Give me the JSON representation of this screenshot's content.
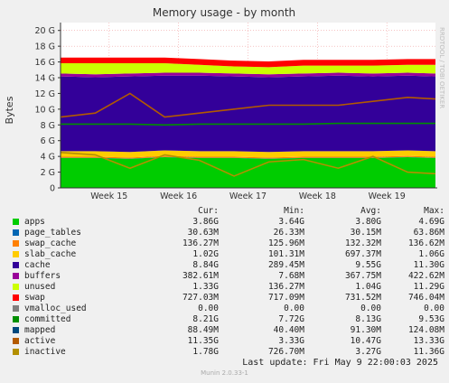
{
  "chart_data": {
    "type": "area",
    "title": "Memory usage - by month",
    "ylabel": "Bytes",
    "ylim": [
      0,
      21
    ],
    "y_ticks": [
      "0",
      "2 G",
      "4 G",
      "6 G",
      "8 G",
      "10 G",
      "12 G",
      "14 G",
      "16 G",
      "18 G",
      "20 G"
    ],
    "y_tick_values": [
      0,
      2,
      4,
      6,
      8,
      10,
      12,
      14,
      16,
      18,
      20
    ],
    "x_ticks": [
      "Week 15",
      "Week 16",
      "Week 17",
      "Week 18",
      "Week 19"
    ],
    "x_tick_values": [
      15,
      16,
      17,
      18,
      19
    ],
    "xlim": [
      14.3,
      19.7
    ],
    "side_label": "RRDTOOL / TOBI OETIKER",
    "grid": true,
    "stacked_series": [
      {
        "name": "apps",
        "color": "#00cc00",
        "values": [
          3.8,
          3.8,
          3.7,
          3.9,
          3.8,
          3.8,
          3.7,
          3.8,
          3.8,
          3.8,
          3.9,
          3.8
        ]
      },
      {
        "name": "page_tables",
        "color": "#0066b3",
        "values": [
          0.03,
          0.03,
          0.03,
          0.03,
          0.03,
          0.03,
          0.03,
          0.03,
          0.03,
          0.03,
          0.03,
          0.03
        ]
      },
      {
        "name": "swap_cache",
        "color": "#ff8000",
        "values": [
          0.13,
          0.13,
          0.13,
          0.13,
          0.13,
          0.13,
          0.13,
          0.13,
          0.13,
          0.13,
          0.13,
          0.13
        ]
      },
      {
        "name": "slab_cache",
        "color": "#ffcc00",
        "values": [
          0.7,
          0.7,
          0.7,
          0.7,
          0.7,
          0.7,
          0.7,
          0.7,
          0.7,
          0.7,
          0.7,
          0.7
        ]
      },
      {
        "name": "cache",
        "color": "#330099",
        "values": [
          9.5,
          9.4,
          9.6,
          9.5,
          9.6,
          9.5,
          9.5,
          9.5,
          9.6,
          9.5,
          9.5,
          9.5
        ]
      },
      {
        "name": "buffers",
        "color": "#990099",
        "values": [
          0.37,
          0.37,
          0.37,
          0.37,
          0.37,
          0.37,
          0.37,
          0.37,
          0.37,
          0.37,
          0.37,
          0.37
        ]
      },
      {
        "name": "unused",
        "color": "#ccff00",
        "values": [
          1.3,
          1.4,
          1.3,
          1.2,
          1.0,
          0.9,
          0.9,
          1.0,
          0.9,
          1.0,
          1.0,
          1.1
        ]
      },
      {
        "name": "swap",
        "color": "#ff0000",
        "values": [
          0.73,
          0.73,
          0.73,
          0.73,
          0.73,
          0.73,
          0.73,
          0.73,
          0.73,
          0.73,
          0.73,
          0.73
        ]
      }
    ],
    "line_series": [
      {
        "name": "committed",
        "color": "#008f00",
        "values": [
          8.1,
          8.1,
          8.1,
          8.0,
          8.1,
          8.1,
          8.1,
          8.1,
          8.2,
          8.2,
          8.2,
          8.2
        ]
      },
      {
        "name": "active",
        "color": "#b35a00",
        "values": [
          9.0,
          9.5,
          12.0,
          9.0,
          9.5,
          10.0,
          10.5,
          10.5,
          10.5,
          11.0,
          11.5,
          11.3
        ]
      },
      {
        "name": "inactive",
        "color": "#b38f00",
        "values": [
          4.5,
          4.2,
          2.5,
          4.2,
          3.5,
          1.5,
          3.3,
          3.6,
          2.5,
          4.0,
          2.0,
          1.8
        ]
      }
    ],
    "x_samples": [
      14.3,
      14.8,
      15.3,
      15.8,
      16.3,
      16.8,
      17.3,
      17.8,
      18.3,
      18.8,
      19.3,
      19.7
    ]
  },
  "legend": {
    "headers": {
      "cur": "Cur:",
      "min": "Min:",
      "avg": "Avg:",
      "max": "Max:"
    },
    "rows": [
      {
        "name": "apps",
        "color": "#00cc00",
        "cur": "3.86G",
        "min": "3.64G",
        "avg": "3.80G",
        "max": "4.69G"
      },
      {
        "name": "page_tables",
        "color": "#0066b3",
        "cur": "30.63M",
        "min": "26.33M",
        "avg": "30.15M",
        "max": "63.86M"
      },
      {
        "name": "swap_cache",
        "color": "#ff8000",
        "cur": "136.27M",
        "min": "125.96M",
        "avg": "132.32M",
        "max": "136.62M"
      },
      {
        "name": "slab_cache",
        "color": "#ffcc00",
        "cur": "1.02G",
        "min": "101.31M",
        "avg": "697.37M",
        "max": "1.06G"
      },
      {
        "name": "cache",
        "color": "#330099",
        "cur": "8.84G",
        "min": "289.45M",
        "avg": "9.55G",
        "max": "11.30G"
      },
      {
        "name": "buffers",
        "color": "#990099",
        "cur": "382.61M",
        "min": "7.68M",
        "avg": "367.75M",
        "max": "422.62M"
      },
      {
        "name": "unused",
        "color": "#ccff00",
        "cur": "1.33G",
        "min": "136.27M",
        "avg": "1.04G",
        "max": "11.29G"
      },
      {
        "name": "swap",
        "color": "#ff0000",
        "cur": "727.03M",
        "min": "717.09M",
        "avg": "731.52M",
        "max": "746.04M"
      },
      {
        "name": "vmalloc_used",
        "color": "#808080",
        "cur": "0.00",
        "min": "0.00",
        "avg": "0.00",
        "max": "0.00"
      },
      {
        "name": "committed",
        "color": "#008f00",
        "cur": "8.21G",
        "min": "7.72G",
        "avg": "8.13G",
        "max": "9.53G"
      },
      {
        "name": "mapped",
        "color": "#00487d",
        "cur": "88.49M",
        "min": "40.40M",
        "avg": "91.30M",
        "max": "124.08M"
      },
      {
        "name": "active",
        "color": "#b35a00",
        "cur": "11.35G",
        "min": "3.33G",
        "avg": "10.47G",
        "max": "13.33G"
      },
      {
        "name": "inactive",
        "color": "#b38f00",
        "cur": "1.78G",
        "min": "726.70M",
        "avg": "3.27G",
        "max": "11.36G"
      }
    ]
  },
  "last_update": "Last update:  Fri May  9 22:00:03 2025",
  "footer": "Munin 2.0.33-1"
}
